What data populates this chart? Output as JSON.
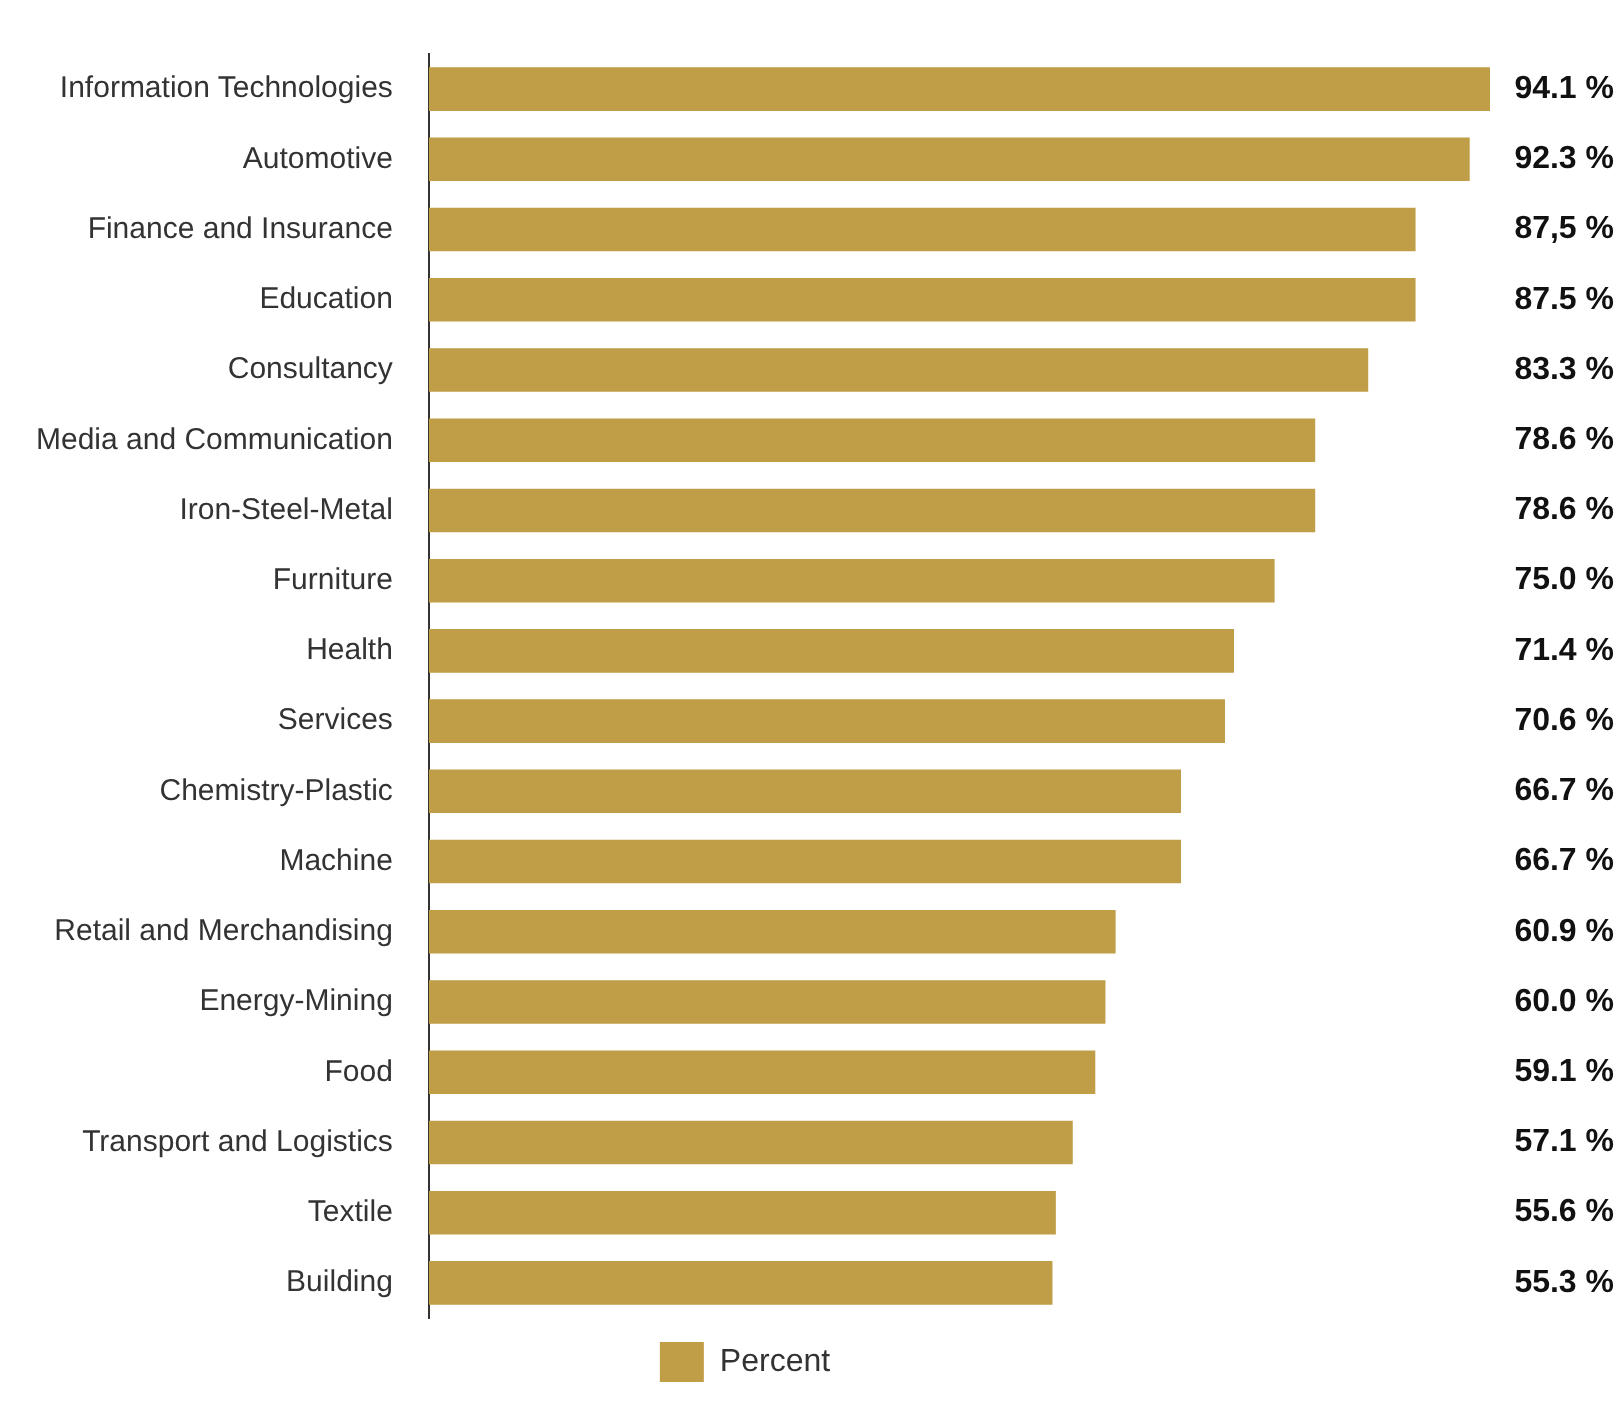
{
  "chart_data": {
    "type": "bar",
    "orientation": "horizontal",
    "legend": "bottom",
    "grid": false,
    "categories": [
      "Information Technologies",
      "Automotive",
      "Finance and Insurance",
      "Education",
      "Consultancy",
      "Media and Communication",
      "Iron-Steel-Metal",
      "Furniture",
      "Health",
      "Services",
      "Chemistry-Plastic",
      "Machine",
      "Retail and Merchandising",
      "Energy-Mining",
      "Food",
      "Transport and Logistics",
      "Textile",
      "Building"
    ],
    "series": [
      {
        "name": "Percent",
        "color": "#c09e47",
        "values": [
          94.1,
          92.3,
          87.5,
          87.5,
          83.3,
          78.6,
          78.6,
          75.0,
          71.4,
          70.6,
          66.7,
          66.7,
          60.9,
          60.0,
          59.1,
          57.1,
          55.6,
          55.3
        ],
        "value_labels": [
          "94.1 %",
          "92.3 %",
          "87,5 %",
          "87.5 %",
          "83.3 %",
          "78.6 %",
          "78.6 %",
          "75.0 %",
          "71.4 %",
          "70.6 %",
          "66.7 %",
          "66.7 %",
          "60.9 %",
          "60.0 %",
          "59.1 %",
          "57.1 %",
          "55.6 %",
          "55.3 %"
        ]
      }
    ]
  }
}
